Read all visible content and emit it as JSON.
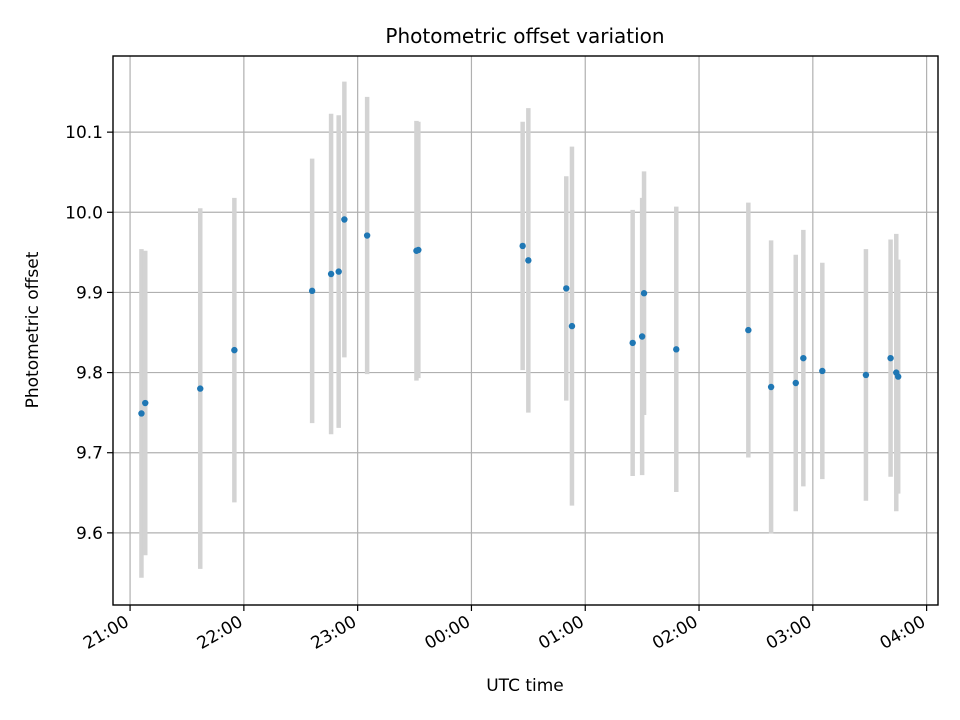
{
  "chart_data": {
    "type": "scatter",
    "title": "Photometric offset variation",
    "xlabel": "UTC time",
    "ylabel": "Photometric offset",
    "x_unit": "hours (UTC, continuing past midnight)",
    "xlim": [
      "20:51",
      "04:06"
    ],
    "ylim": [
      9.51,
      10.195
    ],
    "x_ticks": [
      "21:00",
      "22:00",
      "23:00",
      "00:00",
      "01:00",
      "02:00",
      "03:00",
      "04:00"
    ],
    "y_ticks": [
      9.6,
      9.7,
      9.8,
      9.9,
      10.0,
      10.1
    ],
    "y_tick_labels": [
      "9.6",
      "9.7",
      "9.8",
      "9.9",
      "10.0",
      "10.1"
    ],
    "grid": true,
    "marker_color": "#1f77b4",
    "errorbar_color": "#d3d3d3",
    "series": [
      {
        "points": [
          {
            "t": "21:06",
            "y": 9.749,
            "err": 0.205
          },
          {
            "t": "21:08",
            "y": 9.762,
            "err": 0.19
          },
          {
            "t": "21:37",
            "y": 9.78,
            "err": 0.225
          },
          {
            "t": "21:55",
            "y": 9.828,
            "err": 0.19
          },
          {
            "t": "22:36",
            "y": 9.902,
            "err": 0.165
          },
          {
            "t": "22:46",
            "y": 9.923,
            "err": 0.2
          },
          {
            "t": "22:50",
            "y": 9.926,
            "err": 0.195
          },
          {
            "t": "22:53",
            "y": 9.991,
            "err": 0.172
          },
          {
            "t": "23:05",
            "y": 9.971,
            "err": 0.173
          },
          {
            "t": "23:31",
            "y": 9.952,
            "err": 0.162
          },
          {
            "t": "23:32",
            "y": 9.953,
            "err": 0.16
          },
          {
            "t": "00:27",
            "y": 9.958,
            "err": 0.155
          },
          {
            "t": "00:30",
            "y": 9.94,
            "err": 0.19
          },
          {
            "t": "00:50",
            "y": 9.905,
            "err": 0.14
          },
          {
            "t": "00:53",
            "y": 9.858,
            "err": 0.224
          },
          {
            "t": "01:25",
            "y": 9.837,
            "err": 0.166
          },
          {
            "t": "01:30",
            "y": 9.845,
            "err": 0.173
          },
          {
            "t": "01:31",
            "y": 9.899,
            "err": 0.152
          },
          {
            "t": "01:48",
            "y": 9.829,
            "err": 0.178
          },
          {
            "t": "02:26",
            "y": 9.853,
            "err": 0.159
          },
          {
            "t": "02:38",
            "y": 9.782,
            "err": 0.183
          },
          {
            "t": "02:51",
            "y": 9.787,
            "err": 0.16
          },
          {
            "t": "02:55",
            "y": 9.818,
            "err": 0.16
          },
          {
            "t": "03:05",
            "y": 9.802,
            "err": 0.135
          },
          {
            "t": "03:28",
            "y": 9.797,
            "err": 0.157
          },
          {
            "t": "03:41",
            "y": 9.818,
            "err": 0.148
          },
          {
            "t": "03:44",
            "y": 9.8,
            "err": 0.173
          },
          {
            "t": "03:45",
            "y": 9.795,
            "err": 0.146
          }
        ]
      }
    ]
  }
}
